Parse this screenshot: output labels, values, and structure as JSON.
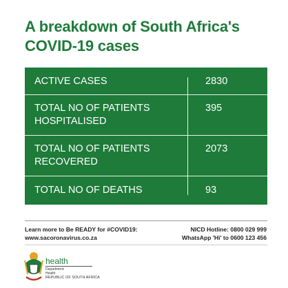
{
  "header": {
    "title": [
      "A breakdown of South Africa's",
      "COVID-19 cases"
    ]
  },
  "table": {
    "rows": [
      {
        "label": [
          "ACTIVE CASES"
        ],
        "value": 2830
      },
      {
        "label": [
          "TOTAL NO OF PATIENTS",
          "HOSPITALISED"
        ],
        "value": 395
      },
      {
        "label": [
          "TOTAL NO OF PATIENTS",
          "RECOVERED"
        ],
        "value": 2073
      },
      {
        "label": [
          "TOTAL NO OF DEATHS"
        ],
        "value": 93
      }
    ]
  },
  "footer": {
    "left": [
      "Learn more to Be READY for #COVID19:",
      "www.sacoronavirus.co.za"
    ],
    "right": [
      "NICD Hotline: 0800 029 999",
      "WhatsApp 'Hi' to 0600 123 456"
    ]
  },
  "logo": {
    "name": "health",
    "lines": [
      "Department:",
      "Health",
      "REPUBLIC OF SOUTH AFRICA"
    ]
  }
}
